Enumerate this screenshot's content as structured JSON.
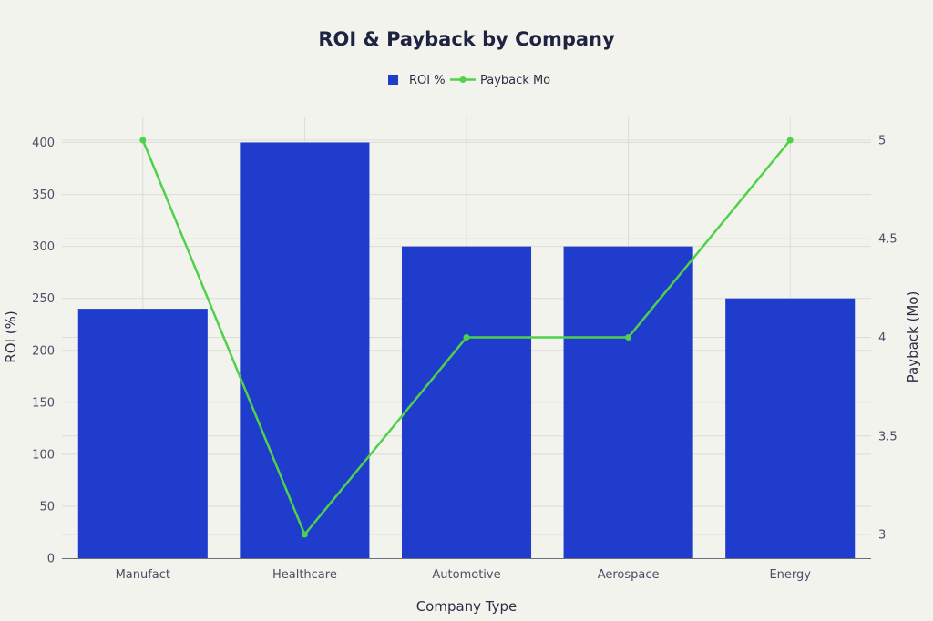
{
  "chart_data": {
    "type": "bar",
    "title": "ROI & Payback by Company",
    "xlabel": "Company Type",
    "ylabel": "ROI (%)",
    "y2label": "Payback (Mo)",
    "categories": [
      "Manufact",
      "Healthcare",
      "Automotive",
      "Aerospace",
      "Energy"
    ],
    "series": [
      {
        "name": "ROI %",
        "type": "bar",
        "axis": "left",
        "values": [
          240,
          400,
          300,
          300,
          250
        ],
        "color": "#1f3ccc"
      },
      {
        "name": "Payback Mo",
        "type": "line",
        "axis": "right",
        "values": [
          5,
          3,
          4,
          4,
          5
        ],
        "color": "#4fd14a"
      }
    ],
    "ylim": [
      0,
      425
    ],
    "y2lim": [
      2.88,
      5.12
    ],
    "yticks": [
      0,
      50,
      100,
      150,
      200,
      250,
      300,
      350,
      400
    ],
    "y2ticks": [
      3,
      3.5,
      4,
      4.5,
      5
    ],
    "grid": true,
    "legend": "top-center"
  }
}
